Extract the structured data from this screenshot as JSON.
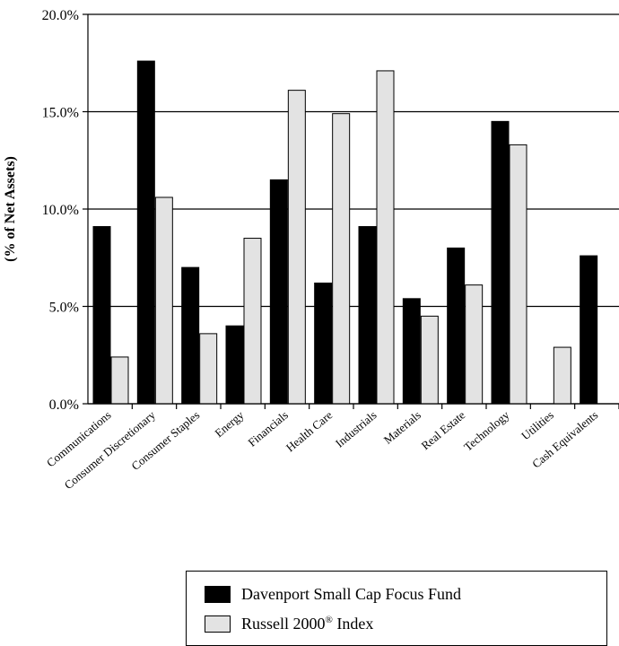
{
  "chart_data": {
    "type": "bar",
    "title": "",
    "xlabel": "",
    "ylabel": "(% of Net Assets)",
    "ylim": [
      0,
      20
    ],
    "yticks": [
      "0.0%",
      "5.0%",
      "10.0%",
      "15.0%",
      "20.0%"
    ],
    "grid": true,
    "legend_position": "bottom",
    "categories": [
      "Communications",
      "Consumer Discretionary",
      "Consumer Staples",
      "Energy",
      "Financials",
      "Health Care",
      "Industrials",
      "Materials",
      "Real Estate",
      "Technology",
      "Utilities",
      "Cash Equivalents"
    ],
    "series": [
      {
        "name": "Davenport Small Cap Focus Fund",
        "name_sup": "",
        "color": "#000000",
        "values": [
          9.1,
          17.6,
          7.0,
          4.0,
          11.5,
          6.2,
          9.1,
          5.4,
          8.0,
          14.5,
          0.0,
          7.6
        ]
      },
      {
        "name": "Russell 2000",
        "name_sup": "®",
        "name_suffix": " Index",
        "color": "#e3e3e3",
        "values": [
          2.4,
          10.6,
          3.6,
          8.5,
          16.1,
          14.9,
          17.1,
          4.5,
          6.1,
          13.3,
          2.9,
          0.0
        ]
      }
    ]
  }
}
